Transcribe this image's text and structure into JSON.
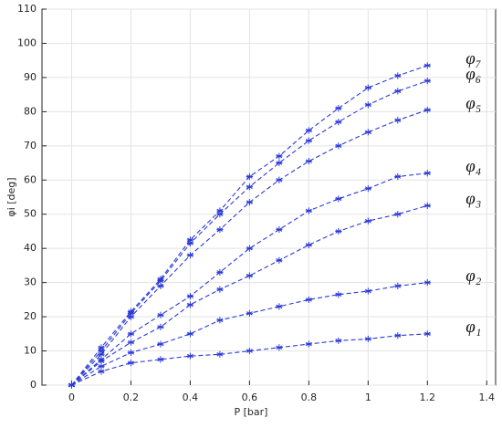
{
  "chart_data": {
    "type": "line",
    "xlabel": "P [bar]",
    "ylabel": "φi [deg]",
    "x": [
      0,
      0.1,
      0.2,
      0.3,
      0.4,
      0.5,
      0.6,
      0.7,
      0.8,
      0.9,
      1,
      1.1,
      1.2
    ],
    "series": [
      {
        "name": "φ₁",
        "color": "#2b3ad8",
        "values": [
          0,
          4,
          6.5,
          7.5,
          8.5,
          9,
          10,
          11,
          12,
          13,
          13.5,
          14.5,
          15
        ]
      },
      {
        "name": "φ₂",
        "color": "#2b3ad8",
        "values": [
          0,
          5.5,
          9.5,
          12,
          15,
          19,
          21,
          23,
          25,
          26.5,
          27.5,
          29,
          30
        ]
      },
      {
        "name": "φ₃",
        "color": "#2b3ad8",
        "values": [
          0,
          7,
          12.5,
          17,
          23.5,
          28,
          32,
          36.5,
          41,
          45,
          48,
          50,
          52.5
        ]
      },
      {
        "name": "φ₄",
        "color": "#2b3ad8",
        "values": [
          0,
          7.5,
          15,
          20.5,
          26,
          33,
          40,
          45.5,
          51,
          54.5,
          57.5,
          61,
          62
        ]
      },
      {
        "name": "φ₅",
        "color": "#2b3ad8",
        "values": [
          0,
          9,
          20,
          29,
          38,
          45.5,
          53.5,
          60,
          65.5,
          70,
          74,
          77.5,
          80.5
        ]
      },
      {
        "name": "φ₆",
        "color": "#2b3ad8",
        "values": [
          0,
          10,
          21,
          30.5,
          41.5,
          50,
          58,
          65,
          71.5,
          77,
          82,
          86,
          89
        ]
      },
      {
        "name": "φ₇",
        "color": "#2b3ad8",
        "values": [
          0,
          11,
          21.5,
          31,
          42.5,
          51,
          61,
          67,
          74.5,
          81,
          87,
          90.5,
          93.5
        ]
      }
    ],
    "xlim": [
      -0.1,
      1.43
    ],
    "ylim": [
      0,
      110
    ],
    "xticks": [
      0,
      0.2,
      0.4,
      0.6,
      0.8,
      1,
      1.2,
      1.4
    ],
    "yticks": [
      0,
      10,
      20,
      30,
      40,
      50,
      60,
      70,
      80,
      90,
      100,
      110
    ],
    "grid": true
  }
}
